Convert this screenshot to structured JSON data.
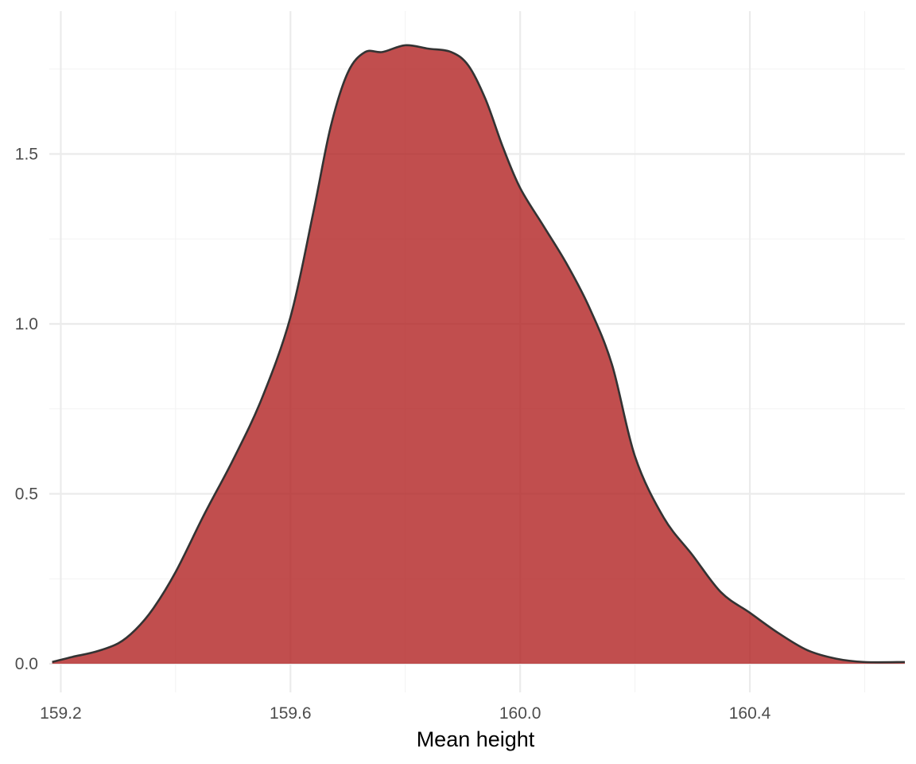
{
  "chart_data": {
    "type": "area",
    "title": "",
    "xlabel": "Mean height",
    "ylabel": "",
    "xlim": [
      159.18,
      160.67
    ],
    "ylim": [
      0,
      1.83
    ],
    "x_ticks": [
      {
        "value": 159.2,
        "label": "159.2"
      },
      {
        "value": 159.6,
        "label": "159.6"
      },
      {
        "value": 160.0,
        "label": "160.0"
      },
      {
        "value": 160.4,
        "label": "160.4"
      }
    ],
    "x_minor_ticks": [
      159.4,
      159.8,
      160.2,
      160.6
    ],
    "y_ticks": [
      {
        "value": 0.0,
        "label": "0.0"
      },
      {
        "value": 0.5,
        "label": "0.5"
      },
      {
        "value": 1.0,
        "label": "1.0"
      },
      {
        "value": 1.5,
        "label": "1.5"
      }
    ],
    "y_minor_ticks": [
      0.25,
      0.75,
      1.25,
      1.75
    ],
    "grid": true,
    "legend": "none",
    "fill_color": "#b22222",
    "fill_opacity": 0.8,
    "line_color": "#333333",
    "series": [
      {
        "x": [
          159.185,
          159.22,
          159.26,
          159.3,
          159.33,
          159.36,
          159.4,
          159.45,
          159.5,
          159.55,
          159.6,
          159.64,
          159.67,
          159.7,
          159.73,
          159.76,
          159.8,
          159.84,
          159.88,
          159.91,
          159.94,
          159.97,
          160.0,
          160.04,
          160.08,
          160.12,
          160.16,
          160.2,
          160.25,
          160.3,
          160.35,
          160.4,
          160.45,
          160.5,
          160.55,
          160.6,
          160.67
        ],
        "y": [
          0.005,
          0.02,
          0.035,
          0.06,
          0.1,
          0.16,
          0.27,
          0.44,
          0.6,
          0.78,
          1.02,
          1.33,
          1.58,
          1.74,
          1.8,
          1.8,
          1.82,
          1.81,
          1.8,
          1.76,
          1.66,
          1.52,
          1.4,
          1.29,
          1.18,
          1.05,
          0.88,
          0.61,
          0.43,
          0.32,
          0.21,
          0.15,
          0.09,
          0.04,
          0.015,
          0.005,
          0.005
        ]
      }
    ]
  }
}
